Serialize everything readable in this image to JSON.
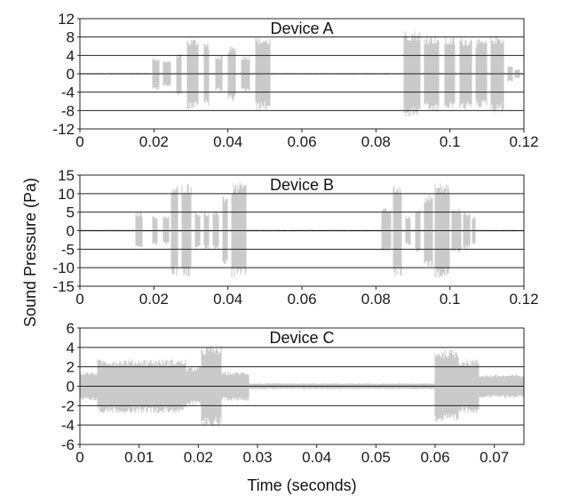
{
  "chart_data": {
    "type": "line",
    "ylabel": "Sound Pressure (Pa)",
    "xlabel": "Time (seconds)",
    "colors": {
      "signal": "#bdbdbd",
      "grid": "#222222",
      "frame": "#222222"
    },
    "panels": [
      {
        "title": "Device A",
        "xlim": [
          0,
          0.12
        ],
        "ylim": [
          -12,
          12
        ],
        "xticks": [
          0,
          0.02,
          0.04,
          0.06,
          0.08,
          0.1,
          0.12
        ],
        "yticks": [
          12,
          8,
          4,
          0,
          -4,
          -8,
          -12
        ],
        "grid": true,
        "bursts": [
          [
            0.0195,
            0.0215,
            3.5
          ],
          [
            0.0225,
            0.0245,
            3
          ],
          [
            0.026,
            0.0275,
            4.5
          ],
          [
            0.029,
            0.032,
            7.8
          ],
          [
            0.0335,
            0.035,
            7
          ],
          [
            0.0365,
            0.0385,
            4
          ],
          [
            0.04,
            0.042,
            6
          ],
          [
            0.0435,
            0.046,
            4
          ],
          [
            0.0475,
            0.0515,
            8
          ],
          [
            0.0875,
            0.092,
            9.5
          ],
          [
            0.093,
            0.097,
            8.5
          ],
          [
            0.0985,
            0.1015,
            8
          ],
          [
            0.1025,
            0.106,
            8
          ],
          [
            0.107,
            0.11,
            7.5
          ],
          [
            0.111,
            0.1145,
            8.5
          ],
          [
            0.1155,
            0.117,
            1.8
          ],
          [
            0.1175,
            0.119,
            1.0
          ]
        ],
        "noise": 0.2
      },
      {
        "title": "Device B",
        "xlim": [
          0,
          0.12
        ],
        "ylim": [
          -15,
          15
        ],
        "xticks": [
          0,
          0.02,
          0.04,
          0.06,
          0.08,
          0.1,
          0.12
        ],
        "yticks": [
          15,
          10,
          5,
          0,
          -5,
          -10,
          -15
        ],
        "grid": true,
        "bursts": [
          [
            0.015,
            0.017,
            5
          ],
          [
            0.0195,
            0.021,
            4
          ],
          [
            0.0225,
            0.024,
            4
          ],
          [
            0.0245,
            0.0265,
            12.5
          ],
          [
            0.0275,
            0.03,
            13
          ],
          [
            0.031,
            0.0325,
            5
          ],
          [
            0.0335,
            0.035,
            5
          ],
          [
            0.036,
            0.0375,
            5
          ],
          [
            0.0385,
            0.04,
            10
          ],
          [
            0.041,
            0.045,
            13
          ],
          [
            0.0815,
            0.084,
            6
          ],
          [
            0.0845,
            0.087,
            12.5
          ],
          [
            0.088,
            0.0895,
            4
          ],
          [
            0.0905,
            0.092,
            6
          ],
          [
            0.093,
            0.0955,
            10
          ],
          [
            0.096,
            0.1,
            13
          ],
          [
            0.1005,
            0.103,
            6
          ],
          [
            0.1035,
            0.1055,
            5
          ],
          [
            0.106,
            0.107,
            4
          ]
        ],
        "noise": 0.3
      },
      {
        "title": "Device C",
        "xlim": [
          0,
          0.075
        ],
        "ylim": [
          -6,
          6
        ],
        "xticks": [
          0,
          0.01,
          0.02,
          0.03,
          0.04,
          0.05,
          0.06,
          0.07
        ],
        "yticks": [
          6,
          4,
          2,
          0,
          -2,
          -4,
          -6
        ],
        "grid": true,
        "bursts": [
          [
            0.0,
            0.003,
            1.5
          ],
          [
            0.003,
            0.018,
            2.8
          ],
          [
            0.018,
            0.0205,
            2.0
          ],
          [
            0.0205,
            0.024,
            4.2
          ],
          [
            0.024,
            0.0285,
            1.5
          ],
          [
            0.0285,
            0.06,
            0.3
          ],
          [
            0.06,
            0.064,
            3.8
          ],
          [
            0.064,
            0.0675,
            2.8
          ],
          [
            0.0675,
            0.075,
            1.2
          ]
        ],
        "noise": 0.25
      }
    ]
  }
}
